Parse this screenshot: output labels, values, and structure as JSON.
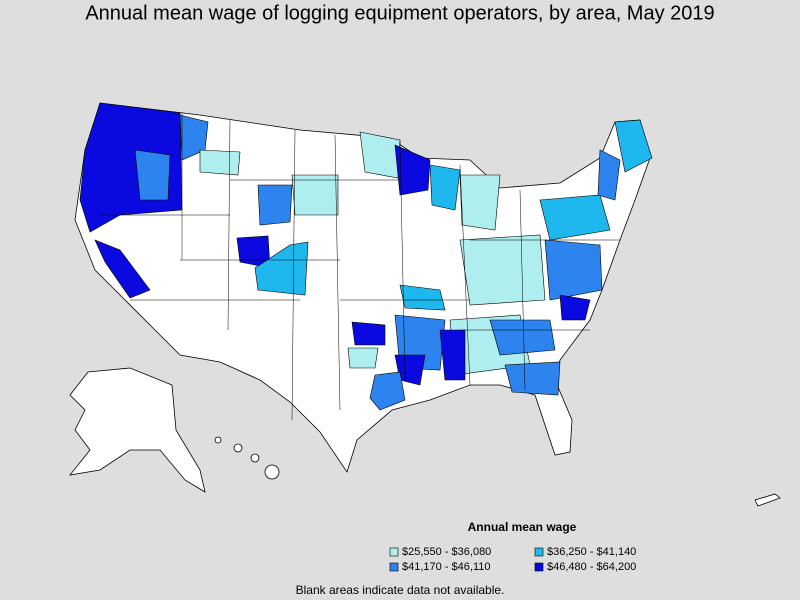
{
  "title": "Annual mean wage of logging equipment operators, by area, May 2019",
  "legend": {
    "title": "Annual mean wage",
    "items": [
      {
        "label": "$25,550 - $36,080",
        "color": "#aeeeee"
      },
      {
        "label": "$36,250 - $41,140",
        "color": "#1fb8ee"
      },
      {
        "label": "$41,170 - $46,110",
        "color": "#2e84ee"
      },
      {
        "label": "$46,480 - $64,200",
        "color": "#0a0ae0"
      }
    ]
  },
  "footnote": "Blank areas indicate data not available."
}
